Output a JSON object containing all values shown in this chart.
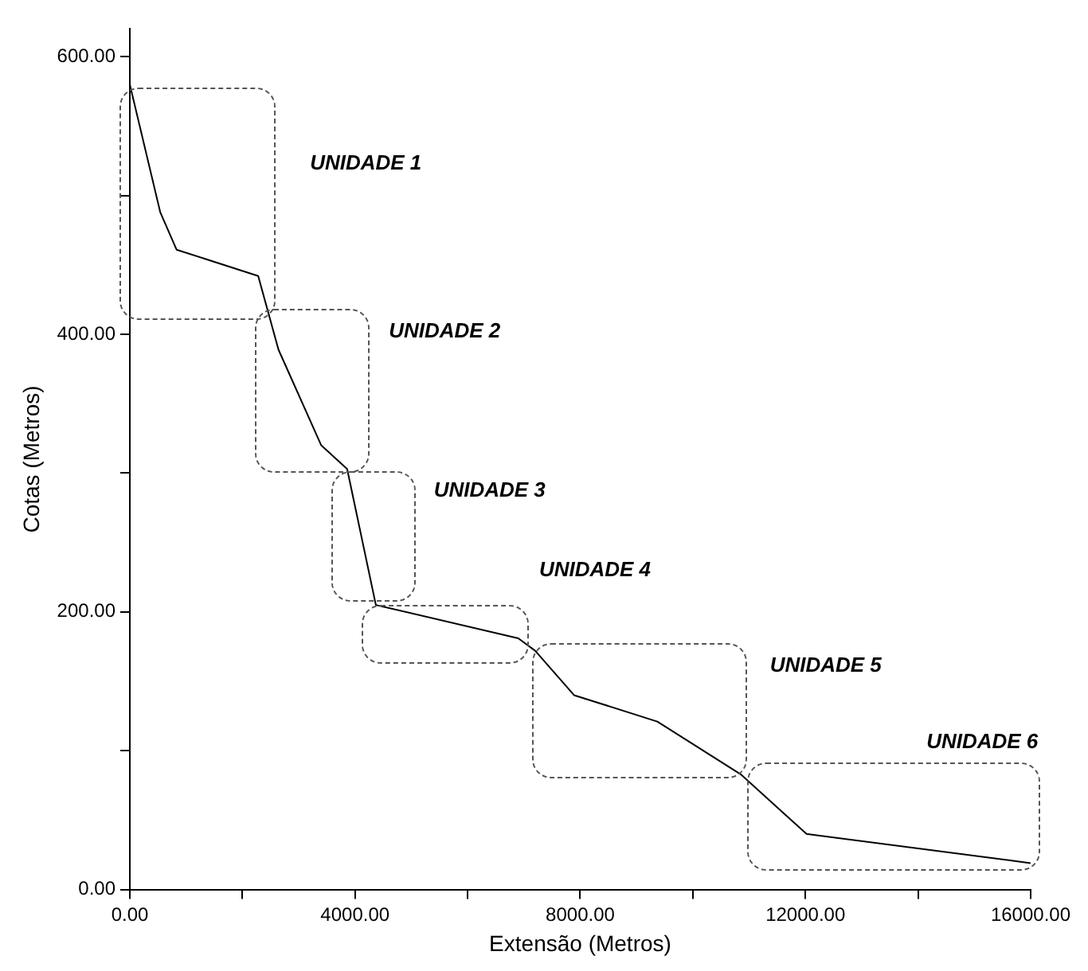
{
  "chart_data": {
    "type": "line",
    "xlabel": "Extensão (Metros)",
    "ylabel": "Cotas (Metros)",
    "x": [
      0,
      540,
      830,
      2280,
      2430,
      2640,
      3400,
      3860,
      4370,
      6900,
      7200,
      7890,
      9370,
      10850,
      12020,
      16000
    ],
    "series": [
      {
        "color": "#000000",
        "values": [
          580,
          488,
          461,
          442,
          420,
          389,
          320,
          303,
          205,
          181,
          172,
          140,
          121,
          83,
          40,
          19
        ]
      }
    ],
    "xlim": [
      0,
      16000
    ],
    "xticks": [
      {
        "value": 0,
        "label": "0.00"
      },
      {
        "value": 2000,
        "label": null
      },
      {
        "value": 4000,
        "label": "4000.00"
      },
      {
        "value": 6000,
        "label": null
      },
      {
        "value": 8000,
        "label": "8000.00"
      },
      {
        "value": 10000,
        "label": null
      },
      {
        "value": 12000,
        "label": "12000.00"
      },
      {
        "value": 14000,
        "label": null
      },
      {
        "value": 16000,
        "label": "16000.00"
      }
    ],
    "ylim": [
      0,
      620
    ],
    "yticks": [
      {
        "value": 0,
        "label": "0.00"
      },
      {
        "value": 100,
        "label": null
      },
      {
        "value": 200,
        "label": "200.00"
      },
      {
        "value": 300,
        "label": null
      },
      {
        "value": 400,
        "label": "400.00"
      },
      {
        "value": 500,
        "label": null
      },
      {
        "value": 600,
        "label": "600.00"
      }
    ],
    "annotations": [
      "UNIDADE 1",
      "UNIDADE 2",
      "UNIDADE 3",
      "UNIDADE 4",
      "UNIDADE 5",
      "UNIDADE 6"
    ],
    "grid": false,
    "legend": false,
    "marker": "none",
    "line_style": "solid"
  }
}
